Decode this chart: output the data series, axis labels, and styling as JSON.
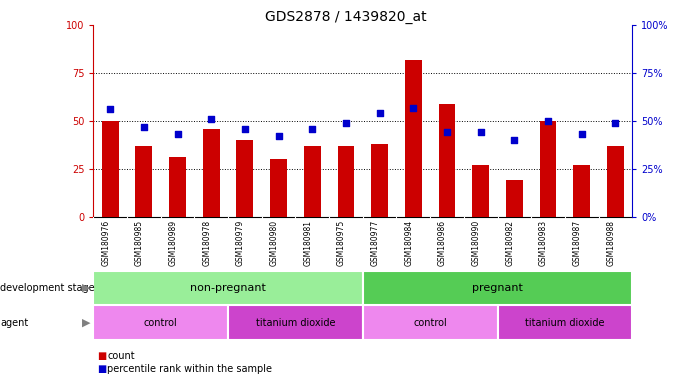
{
  "title": "GDS2878 / 1439820_at",
  "samples": [
    "GSM180976",
    "GSM180985",
    "GSM180989",
    "GSM180978",
    "GSM180979",
    "GSM180980",
    "GSM180981",
    "GSM180975",
    "GSM180977",
    "GSM180984",
    "GSM180986",
    "GSM180990",
    "GSM180982",
    "GSM180983",
    "GSM180987",
    "GSM180988"
  ],
  "bar_heights": [
    50,
    37,
    31,
    46,
    40,
    30,
    37,
    37,
    38,
    82,
    59,
    27,
    19,
    50,
    27,
    37
  ],
  "dot_values": [
    56,
    47,
    43,
    51,
    46,
    42,
    46,
    49,
    54,
    57,
    44,
    44,
    40,
    50,
    43,
    49
  ],
  "bar_color": "#cc0000",
  "dot_color": "#0000cc",
  "ylim": [
    0,
    100
  ],
  "yticks": [
    0,
    25,
    50,
    75,
    100
  ],
  "grid_values": [
    25,
    50,
    75
  ],
  "development_stage_groups": [
    {
      "label": "non-pregnant",
      "start": 0,
      "end": 7,
      "color": "#99ee99"
    },
    {
      "label": "pregnant",
      "start": 8,
      "end": 15,
      "color": "#55cc55"
    }
  ],
  "agent_groups": [
    {
      "label": "control",
      "start": 0,
      "end": 3,
      "color": "#ee88ee"
    },
    {
      "label": "titanium dioxide",
      "start": 4,
      "end": 7,
      "color": "#cc44cc"
    },
    {
      "label": "control",
      "start": 8,
      "end": 11,
      "color": "#ee88ee"
    },
    {
      "label": "titanium dioxide",
      "start": 12,
      "end": 15,
      "color": "#cc44cc"
    }
  ],
  "left_axis_color": "#cc0000",
  "right_axis_color": "#0000cc",
  "bar_width": 0.5,
  "title_fontsize": 10,
  "sample_fontsize": 5.5,
  "group_fontsize": 8,
  "agent_fontsize": 7,
  "legend_fontsize": 7,
  "dev_stage_label": "development stage",
  "agent_label": "agent",
  "legend_count": "count",
  "legend_percentile": "percentile rank within the sample"
}
